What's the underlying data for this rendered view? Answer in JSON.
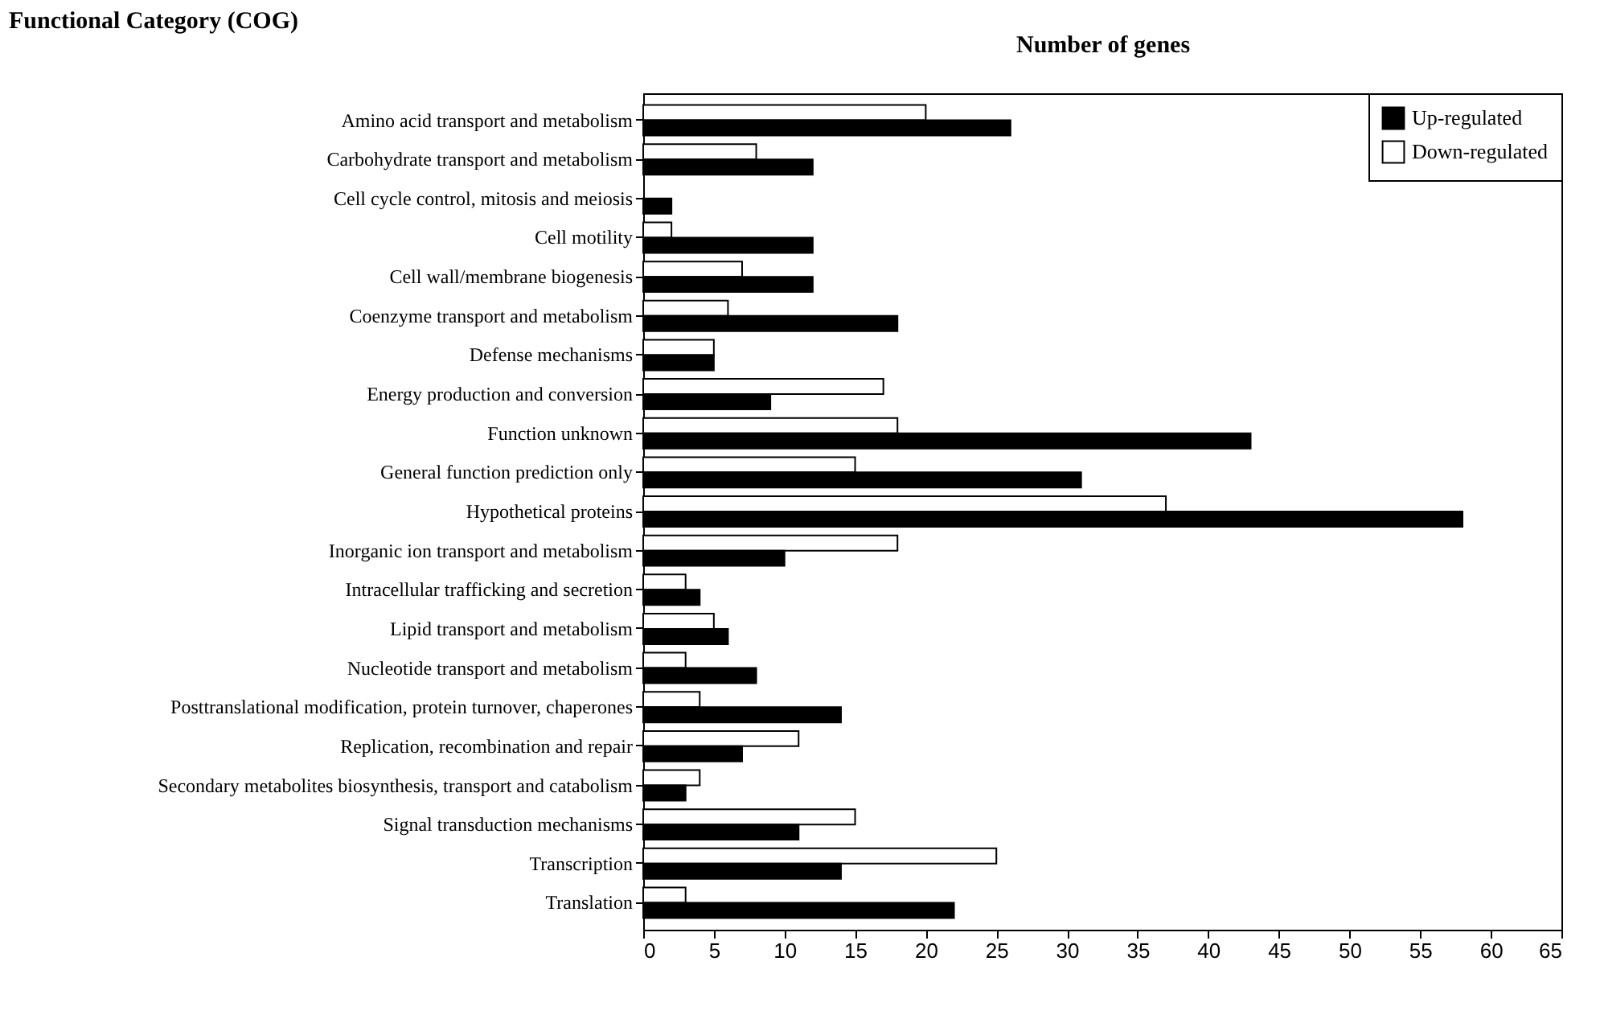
{
  "chart_data": {
    "type": "bar",
    "orientation": "horizontal",
    "xlabel": "Number of genes",
    "ylabel": "Functional Category (COG)",
    "categories": [
      "Amino acid transport and metabolism",
      "Carbohydrate transport and metabolism",
      "Cell cycle control, mitosis and meiosis",
      "Cell motility",
      "Cell wall/membrane biogenesis",
      "Coenzyme transport and metabolism",
      "Defense mechanisms",
      "Energy production and conversion",
      "Function unknown",
      "General function prediction only",
      "Hypothetical proteins",
      "Inorganic ion transport and metabolism",
      "Intracellular trafficking and secretion",
      "Lipid transport and metabolism",
      "Nucleotide transport and metabolism",
      "Posttranslational modification, protein turnover, chaperones",
      "Replication, recombination and repair",
      "Secondary metabolites biosynthesis, transport and catabolism",
      "Signal transduction mechanisms",
      "Transcription",
      "Translation"
    ],
    "series": [
      {
        "name": "Down-regulated",
        "color": "#ffffff",
        "values": [
          20,
          8,
          0,
          2,
          7,
          6,
          5,
          17,
          18,
          15,
          37,
          18,
          3,
          5,
          3,
          4,
          11,
          4,
          15,
          25,
          3
        ]
      },
      {
        "name": "Up-regulated",
        "color": "#000000",
        "values": [
          26,
          12,
          2,
          12,
          12,
          18,
          5,
          9,
          43,
          31,
          58,
          10,
          4,
          6,
          8,
          14,
          7,
          3,
          11,
          14,
          22
        ]
      }
    ],
    "xlim": [
      0,
      65
    ],
    "xticks": [
      0,
      5,
      10,
      15,
      20,
      25,
      30,
      35,
      40,
      45,
      50,
      55,
      60,
      65
    ],
    "legend": "top right",
    "grid": false
  }
}
